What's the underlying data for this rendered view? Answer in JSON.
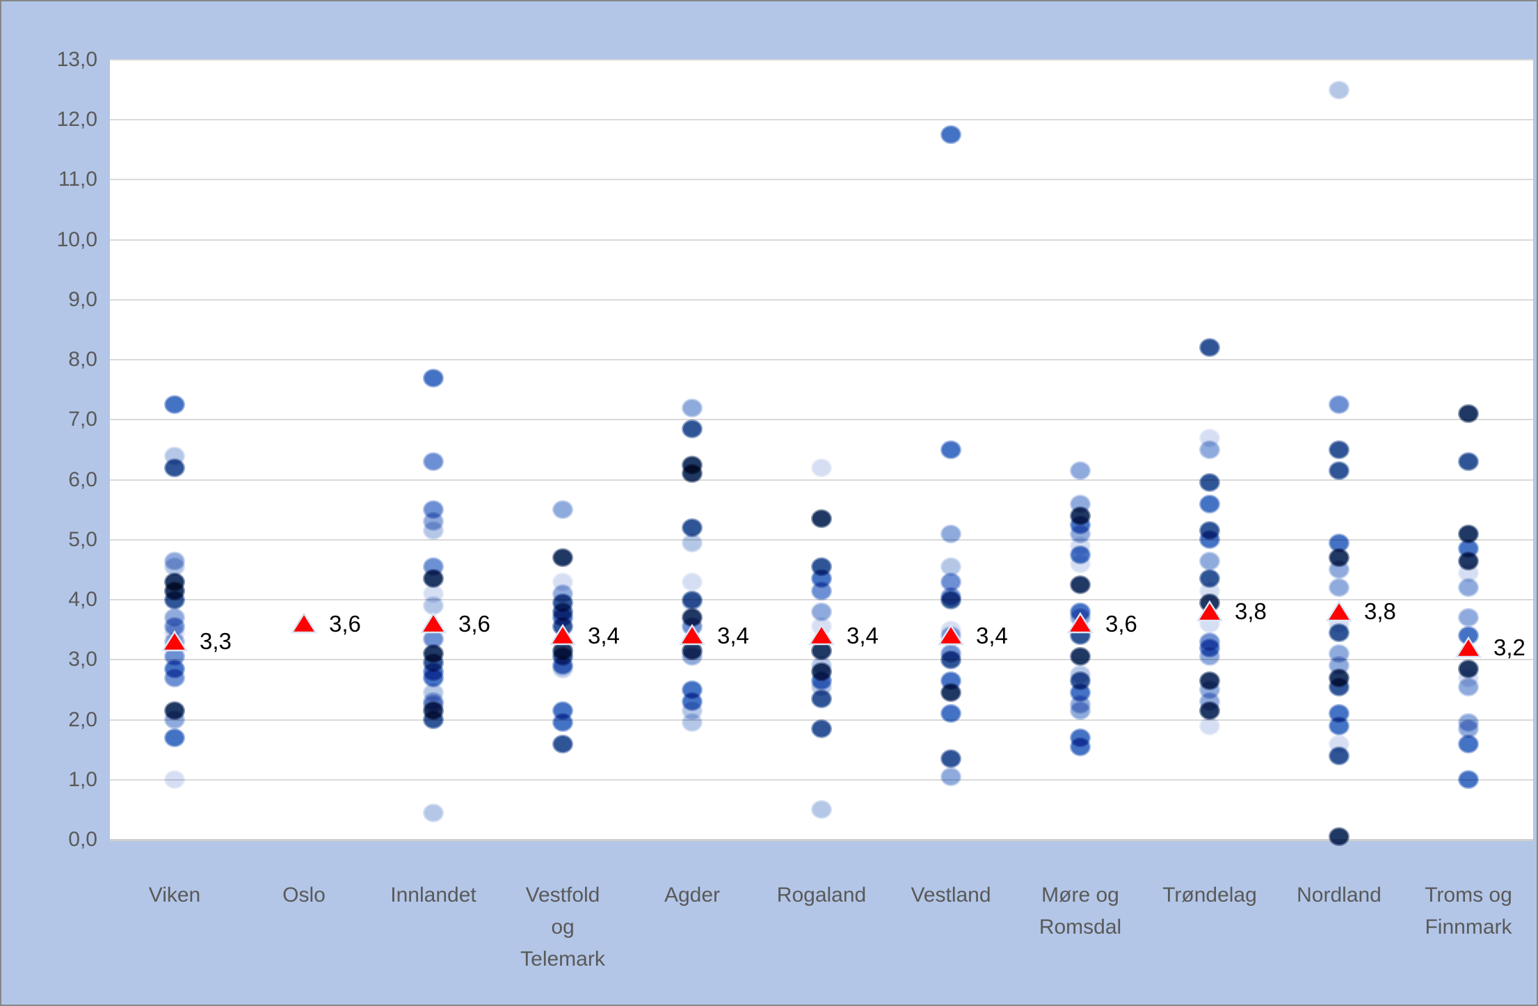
{
  "chart_data": {
    "type": "scatter",
    "title": "",
    "xlabel": "",
    "ylabel": "",
    "ylim": [
      0,
      13
    ],
    "ytick_step": 1,
    "grid": true,
    "legend": "none",
    "decimal_style": "comma",
    "ytick_labels": [
      "0,0",
      "1,0",
      "2,0",
      "3,0",
      "4,0",
      "5,0",
      "6,0",
      "7,0",
      "8,0",
      "9,0",
      "10,0",
      "11,0",
      "12,0",
      "13,0"
    ],
    "marker_palette": [
      "#1f3864",
      "#2f5597",
      "#4472c4",
      "#6d8fd3",
      "#8faadc",
      "#b4c7e7",
      "#d5def2"
    ],
    "mean_marker": {
      "shape": "triangle",
      "fill": "#fe0101",
      "outline": "#dce6f6"
    },
    "colors": {
      "background": "#b3c6e7",
      "plot_background": "#ffffff",
      "gridline": "#d9d9d9",
      "border": "#868686",
      "tick_text": "#595959",
      "mean_label_text": "#000000"
    },
    "categories": [
      {
        "name": "Viken",
        "label_lines": [
          "Viken"
        ],
        "mean": 3.3,
        "mean_label": "3,3",
        "points": [
          [
            7.25,
            2
          ],
          [
            6.4,
            5
          ],
          [
            6.2,
            1
          ],
          [
            4.65,
            4
          ],
          [
            4.55,
            5
          ],
          [
            4.3,
            0
          ],
          [
            4.15,
            0
          ],
          [
            4.0,
            1
          ],
          [
            3.7,
            4
          ],
          [
            3.55,
            3
          ],
          [
            3.45,
            6
          ],
          [
            3.3,
            4
          ],
          [
            3.05,
            3
          ],
          [
            2.85,
            2
          ],
          [
            2.7,
            3
          ],
          [
            2.15,
            0
          ],
          [
            2.0,
            4
          ],
          [
            1.7,
            2
          ],
          [
            1.0,
            6
          ]
        ]
      },
      {
        "name": "Oslo",
        "label_lines": [
          "Oslo"
        ],
        "mean": 3.6,
        "mean_label": "3,6",
        "points": []
      },
      {
        "name": "Innlandet",
        "label_lines": [
          "Innlandet"
        ],
        "mean": 3.6,
        "mean_label": "3,6",
        "points": [
          [
            7.7,
            2
          ],
          [
            6.3,
            3
          ],
          [
            5.5,
            3
          ],
          [
            5.3,
            4
          ],
          [
            5.15,
            5
          ],
          [
            4.55,
            3
          ],
          [
            4.35,
            0
          ],
          [
            4.1,
            6
          ],
          [
            3.9,
            5
          ],
          [
            3.35,
            3
          ],
          [
            3.1,
            0
          ],
          [
            2.95,
            1
          ],
          [
            2.8,
            2
          ],
          [
            2.7,
            2
          ],
          [
            2.45,
            5
          ],
          [
            2.3,
            4
          ],
          [
            2.25,
            4
          ],
          [
            2.15,
            0
          ],
          [
            2.0,
            1
          ],
          [
            0.45,
            5
          ]
        ]
      },
      {
        "name": "Vestfold og Telemark",
        "label_lines": [
          "Vestfold",
          "og",
          "Telemark"
        ],
        "mean": 3.4,
        "mean_label": "3,4",
        "points": [
          [
            5.5,
            4
          ],
          [
            4.7,
            0
          ],
          [
            4.3,
            6
          ],
          [
            4.1,
            4
          ],
          [
            3.95,
            1
          ],
          [
            3.8,
            1
          ],
          [
            3.7,
            2
          ],
          [
            3.55,
            1
          ],
          [
            3.15,
            0
          ],
          [
            3.05,
            1
          ],
          [
            2.9,
            2
          ],
          [
            2.85,
            5
          ],
          [
            2.15,
            2
          ],
          [
            1.95,
            2
          ],
          [
            1.6,
            1
          ]
        ]
      },
      {
        "name": "Agder",
        "label_lines": [
          "Agder"
        ],
        "mean": 3.4,
        "mean_label": "3,4",
        "points": [
          [
            7.2,
            4
          ],
          [
            6.85,
            1
          ],
          [
            6.25,
            0
          ],
          [
            6.1,
            0
          ],
          [
            5.2,
            1
          ],
          [
            4.95,
            5
          ],
          [
            4.3,
            6
          ],
          [
            4.0,
            1
          ],
          [
            3.95,
            6
          ],
          [
            3.7,
            0
          ],
          [
            3.55,
            3
          ],
          [
            3.15,
            0
          ],
          [
            3.05,
            4
          ],
          [
            2.5,
            2
          ],
          [
            2.3,
            2
          ],
          [
            2.15,
            5
          ],
          [
            1.95,
            5
          ]
        ]
      },
      {
        "name": "Rogaland",
        "label_lines": [
          "Rogaland"
        ],
        "mean": 3.4,
        "mean_label": "3,4",
        "points": [
          [
            6.2,
            6
          ],
          [
            5.35,
            0
          ],
          [
            4.55,
            1
          ],
          [
            4.35,
            2
          ],
          [
            4.15,
            3
          ],
          [
            3.8,
            4
          ],
          [
            3.55,
            6
          ],
          [
            3.15,
            0
          ],
          [
            2.9,
            5
          ],
          [
            2.8,
            0
          ],
          [
            2.65,
            2
          ],
          [
            2.55,
            5
          ],
          [
            2.35,
            1
          ],
          [
            1.85,
            1
          ],
          [
            0.5,
            5
          ]
        ]
      },
      {
        "name": "Vestland",
        "label_lines": [
          "Vestland"
        ],
        "mean": 3.4,
        "mean_label": "3,4",
        "points": [
          [
            11.75,
            2
          ],
          [
            6.5,
            2
          ],
          [
            5.1,
            4
          ],
          [
            4.55,
            5
          ],
          [
            4.3,
            3
          ],
          [
            4.05,
            3
          ],
          [
            4.0,
            1
          ],
          [
            3.5,
            6
          ],
          [
            3.4,
            4
          ],
          [
            3.1,
            3
          ],
          [
            3.0,
            1
          ],
          [
            2.65,
            2
          ],
          [
            2.45,
            0
          ],
          [
            2.1,
            2
          ],
          [
            1.35,
            1
          ],
          [
            1.05,
            4
          ]
        ]
      },
      {
        "name": "Møre og Romsdal",
        "label_lines": [
          "Møre og",
          "Romsdal"
        ],
        "mean": 3.6,
        "mean_label": "3,6",
        "points": [
          [
            6.15,
            4
          ],
          [
            5.6,
            4
          ],
          [
            5.4,
            0
          ],
          [
            5.25,
            2
          ],
          [
            5.1,
            4
          ],
          [
            4.9,
            6
          ],
          [
            4.75,
            2
          ],
          [
            4.6,
            6
          ],
          [
            4.25,
            0
          ],
          [
            3.8,
            2
          ],
          [
            3.7,
            4
          ],
          [
            3.4,
            1
          ],
          [
            3.05,
            0
          ],
          [
            2.75,
            5
          ],
          [
            2.65,
            1
          ],
          [
            2.45,
            2
          ],
          [
            2.25,
            4
          ],
          [
            2.15,
            4
          ],
          [
            1.7,
            2
          ],
          [
            1.55,
            2
          ]
        ]
      },
      {
        "name": "Trøndelag",
        "label_lines": [
          "Trøndelag"
        ],
        "mean": 3.8,
        "mean_label": "3,8",
        "points": [
          [
            8.2,
            1
          ],
          [
            6.7,
            6
          ],
          [
            6.5,
            4
          ],
          [
            5.95,
            1
          ],
          [
            5.6,
            2
          ],
          [
            5.15,
            1
          ],
          [
            5.0,
            2
          ],
          [
            4.65,
            4
          ],
          [
            4.35,
            1
          ],
          [
            4.15,
            6
          ],
          [
            3.95,
            0
          ],
          [
            3.6,
            6
          ],
          [
            3.3,
            3
          ],
          [
            3.2,
            2
          ],
          [
            3.05,
            4
          ],
          [
            2.65,
            0
          ],
          [
            2.5,
            4
          ],
          [
            2.3,
            4
          ],
          [
            2.15,
            0
          ],
          [
            1.9,
            6
          ]
        ]
      },
      {
        "name": "Nordland",
        "label_lines": [
          "Nordland"
        ],
        "mean": 3.8,
        "mean_label": "3,8",
        "points": [
          [
            12.5,
            5
          ],
          [
            7.25,
            3
          ],
          [
            6.5,
            1
          ],
          [
            6.15,
            1
          ],
          [
            4.95,
            2
          ],
          [
            4.7,
            0
          ],
          [
            4.5,
            4
          ],
          [
            4.2,
            4
          ],
          [
            3.6,
            6
          ],
          [
            3.45,
            1
          ],
          [
            3.1,
            4
          ],
          [
            2.9,
            4
          ],
          [
            2.7,
            0
          ],
          [
            2.55,
            1
          ],
          [
            2.1,
            2
          ],
          [
            1.9,
            2
          ],
          [
            1.6,
            6
          ],
          [
            1.4,
            1
          ],
          [
            0.05,
            0
          ]
        ]
      },
      {
        "name": "Troms og Finnmark",
        "label_lines": [
          "Troms og",
          "Finnmark"
        ],
        "mean": 3.2,
        "mean_label": "3,2",
        "points": [
          [
            7.1,
            0
          ],
          [
            6.3,
            1
          ],
          [
            5.1,
            0
          ],
          [
            4.85,
            2
          ],
          [
            4.65,
            0
          ],
          [
            4.45,
            6
          ],
          [
            4.2,
            4
          ],
          [
            3.7,
            4
          ],
          [
            3.4,
            2
          ],
          [
            2.85,
            0
          ],
          [
            2.7,
            6
          ],
          [
            2.55,
            4
          ],
          [
            1.95,
            4
          ],
          [
            1.85,
            4
          ],
          [
            1.6,
            2
          ],
          [
            1.0,
            2
          ]
        ]
      }
    ]
  }
}
